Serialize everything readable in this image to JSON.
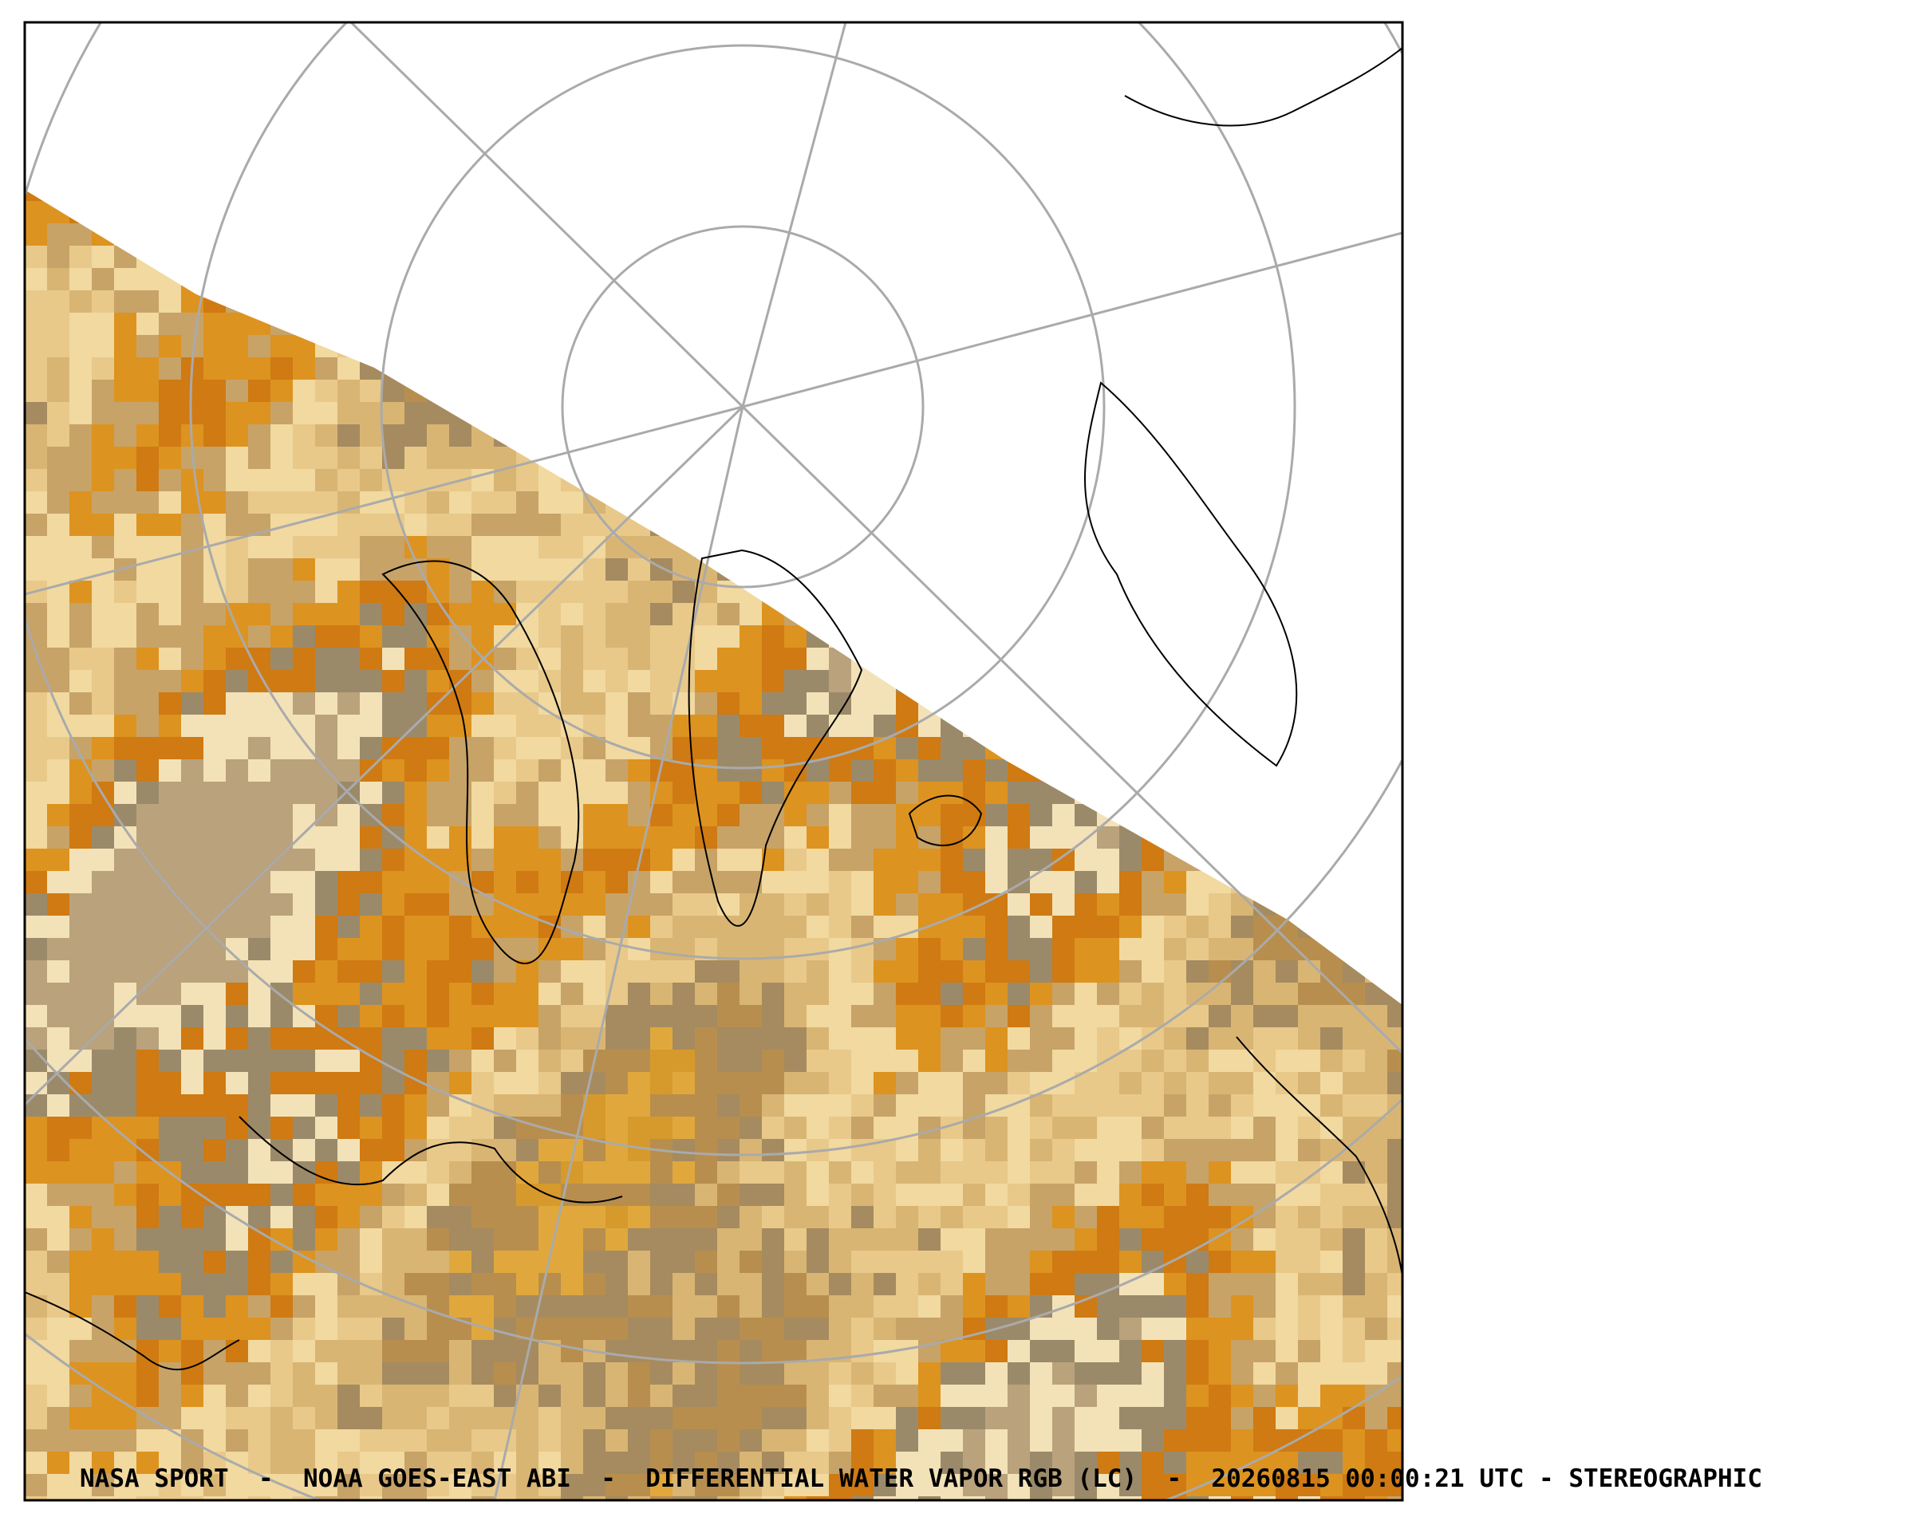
{
  "caption": "NASA SPORT  -  NOAA GOES-EAST ABI  -  DIFFERENTIAL WATER VAPOR RGB (LC)  -  20260815 00:00:21 UTC - STEREOGRAPHIC"
}
